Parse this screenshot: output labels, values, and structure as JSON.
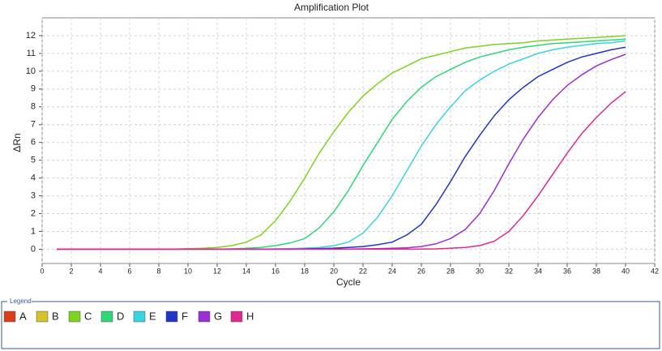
{
  "chart_data": {
    "type": "line",
    "title": "Amplification Plot",
    "x_label": "Cycle",
    "y_label": "ΔRn",
    "legend_title": "Legend",
    "x": [
      1,
      2,
      3,
      4,
      5,
      6,
      7,
      8,
      9,
      10,
      11,
      12,
      13,
      14,
      15,
      16,
      17,
      18,
      19,
      20,
      21,
      22,
      23,
      24,
      25,
      26,
      27,
      28,
      29,
      30,
      31,
      32,
      33,
      34,
      35,
      36,
      37,
      38,
      39,
      40
    ],
    "xlim": [
      0,
      42
    ],
    "xticks": [
      0,
      2,
      4,
      6,
      8,
      10,
      12,
      14,
      16,
      18,
      20,
      22,
      24,
      26,
      28,
      30,
      32,
      34,
      36,
      38,
      40,
      42
    ],
    "ylim": [
      -0.8,
      13
    ],
    "yticks": [
      0,
      1,
      2,
      3,
      4,
      5,
      6,
      7,
      8,
      9,
      10,
      11,
      12
    ],
    "grid": true,
    "series": [
      {
        "name": "A",
        "color": "#d9401a",
        "values": [
          null,
          null,
          null,
          null,
          null,
          null,
          null,
          null,
          null,
          null,
          null,
          null,
          null,
          null,
          null,
          null,
          null,
          null,
          null,
          null,
          null,
          null,
          null,
          null,
          null,
          null,
          null,
          null,
          null,
          null,
          null,
          null,
          null,
          null,
          null,
          null,
          null,
          null,
          null,
          null
        ]
      },
      {
        "name": "B",
        "color": "#d4c22a",
        "values": [
          null,
          null,
          null,
          null,
          null,
          null,
          null,
          null,
          null,
          null,
          null,
          null,
          null,
          null,
          null,
          null,
          null,
          null,
          null,
          null,
          null,
          null,
          null,
          null,
          null,
          null,
          null,
          null,
          null,
          null,
          null,
          null,
          null,
          null,
          null,
          null,
          null,
          null,
          null,
          null
        ]
      },
      {
        "name": "C",
        "color": "#7ed321",
        "values": [
          0,
          0,
          0,
          0,
          0,
          0,
          0,
          0,
          0,
          0.03,
          0.05,
          0.1,
          0.2,
          0.4,
          0.8,
          1.6,
          2.7,
          4.0,
          5.4,
          6.6,
          7.7,
          8.6,
          9.3,
          9.9,
          10.3,
          10.7,
          10.9,
          11.1,
          11.3,
          11.4,
          11.5,
          11.55,
          11.6,
          11.7,
          11.75,
          11.8,
          11.85,
          11.9,
          11.95,
          12.0
        ]
      },
      {
        "name": "D",
        "color": "#2fd67a",
        "values": [
          0,
          0,
          0,
          0,
          0,
          0,
          0,
          0,
          0,
          0,
          0,
          0,
          0.02,
          0.05,
          0.1,
          0.2,
          0.35,
          0.6,
          1.2,
          2.1,
          3.3,
          4.7,
          6.0,
          7.3,
          8.3,
          9.1,
          9.7,
          10.1,
          10.5,
          10.8,
          11.0,
          11.2,
          11.35,
          11.45,
          11.55,
          11.6,
          11.65,
          11.7,
          11.75,
          11.8
        ]
      },
      {
        "name": "E",
        "color": "#3ad4e0",
        "values": [
          0,
          0,
          0,
          0,
          0,
          0,
          0,
          0,
          0,
          0,
          0,
          0,
          0,
          0,
          0,
          0.02,
          0.04,
          0.06,
          0.1,
          0.2,
          0.4,
          0.9,
          1.8,
          3.0,
          4.4,
          5.8,
          7.0,
          8.0,
          8.9,
          9.5,
          10.0,
          10.4,
          10.7,
          11.0,
          11.2,
          11.35,
          11.45,
          11.55,
          11.6,
          11.7
        ]
      },
      {
        "name": "F",
        "color": "#2035c8",
        "values": [
          0,
          0,
          0,
          0,
          0,
          0,
          0,
          0,
          0,
          0,
          0,
          0,
          0,
          0,
          0,
          0,
          0,
          0.02,
          0.04,
          0.06,
          0.1,
          0.15,
          0.25,
          0.4,
          0.8,
          1.4,
          2.5,
          3.8,
          5.2,
          6.4,
          7.5,
          8.4,
          9.1,
          9.7,
          10.1,
          10.5,
          10.8,
          11.0,
          11.2,
          11.35
        ]
      },
      {
        "name": "G",
        "color": "#9b2fd4",
        "values": [
          0,
          0,
          0,
          0,
          0,
          0,
          0,
          0,
          0,
          0,
          0,
          0,
          0,
          0,
          0,
          0,
          0,
          0,
          0,
          0,
          0.01,
          0.02,
          0.03,
          0.05,
          0.08,
          0.15,
          0.3,
          0.6,
          1.1,
          2.0,
          3.3,
          4.8,
          6.2,
          7.4,
          8.4,
          9.2,
          9.8,
          10.3,
          10.65,
          10.95
        ]
      },
      {
        "name": "H",
        "color": "#e0288f",
        "values": [
          0,
          0,
          0,
          0,
          0,
          0,
          0,
          0,
          0,
          0,
          0,
          0,
          0,
          0,
          0,
          0,
          0,
          0,
          0,
          0,
          0,
          0,
          0,
          0,
          0,
          0.01,
          0.02,
          0.05,
          0.1,
          0.2,
          0.45,
          1.0,
          1.9,
          3.0,
          4.2,
          5.4,
          6.5,
          7.4,
          8.2,
          8.85
        ]
      }
    ]
  }
}
